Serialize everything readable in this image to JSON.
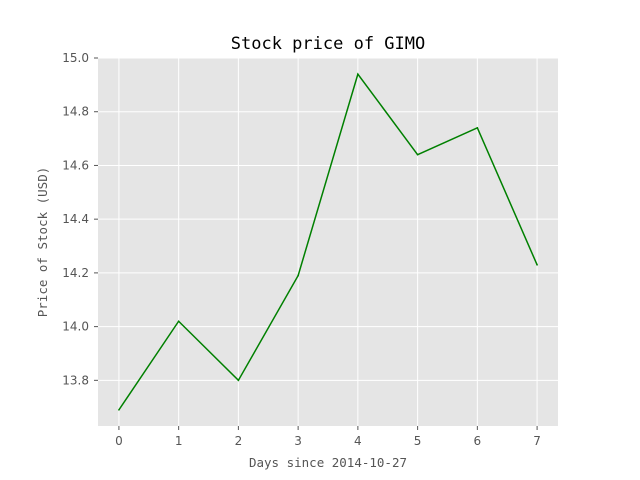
{
  "chart_data": {
    "type": "line",
    "title": "Stock price of GIMO",
    "xlabel": "Days since 2014-10-27",
    "ylabel": "Price of Stock (USD)",
    "x": [
      0,
      1,
      2,
      3,
      4,
      5,
      6,
      7
    ],
    "x_ticks": [
      "0",
      "1",
      "2",
      "3",
      "4",
      "5",
      "6",
      "7"
    ],
    "y_ticks": [
      "13.8",
      "14.0",
      "14.2",
      "14.4",
      "14.6",
      "14.8",
      "15.0"
    ],
    "xlim": [
      -0.35,
      7.35
    ],
    "ylim": [
      13.63,
      15.0
    ],
    "series": [
      {
        "values": [
          13.69,
          14.02,
          13.8,
          14.19,
          14.94,
          14.64,
          14.74,
          14.23
        ],
        "color": "#008000"
      }
    ],
    "grid": true,
    "background": "#e5e5e5",
    "grid_color": "#ffffff"
  }
}
